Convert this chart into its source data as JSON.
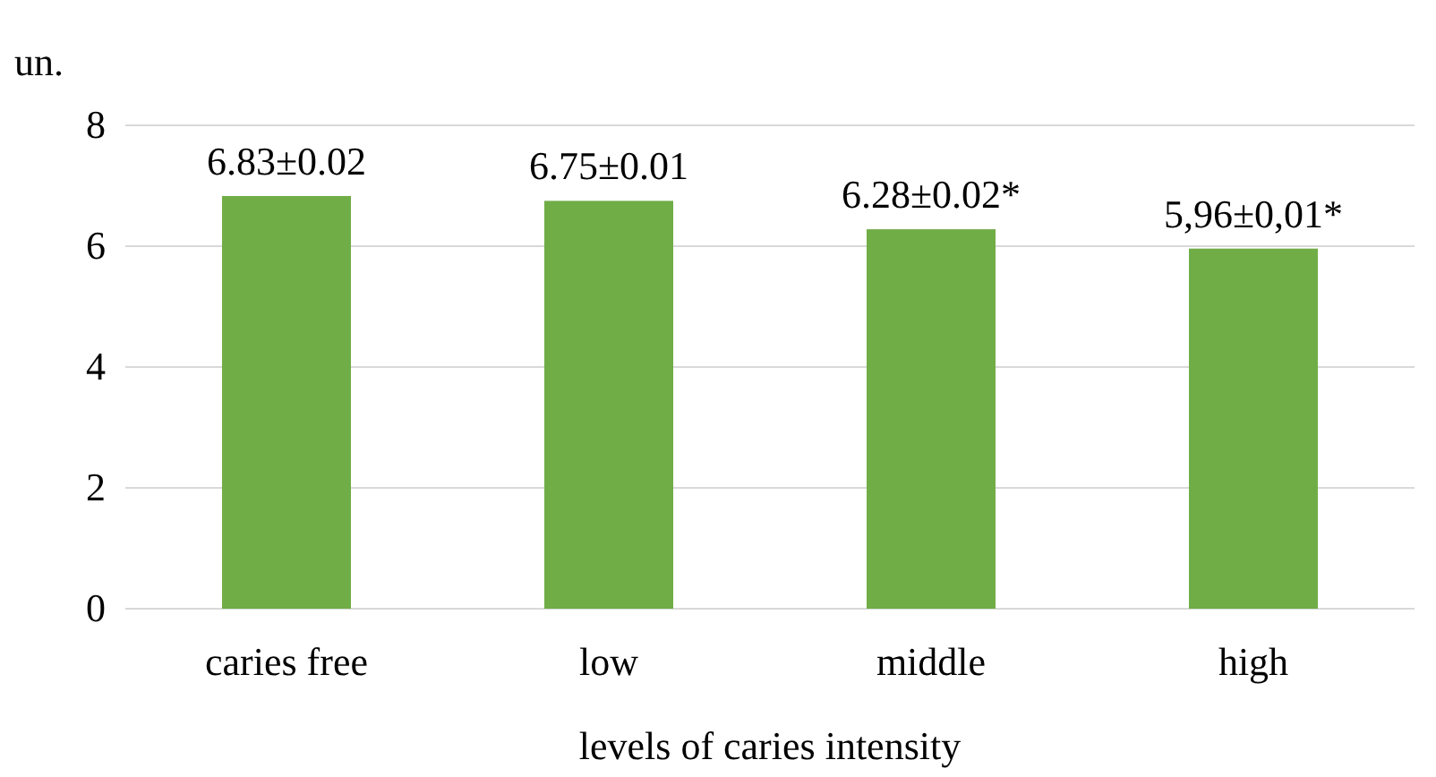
{
  "chart_data": {
    "type": "bar",
    "xlabel": "levels of caries intensity",
    "ylabel": "un.",
    "categories": [
      "caries free",
      "low",
      "middle",
      "high"
    ],
    "values": [
      6.83,
      6.75,
      6.28,
      5.96
    ],
    "value_labels": [
      "6.83±0.02",
      "6.75±0.01",
      "6.28±0.02*",
      "5,96±0,01*"
    ],
    "color": "#70ad47",
    "ylim": [
      0,
      8
    ],
    "yticks": [
      0,
      2,
      4,
      6,
      8
    ],
    "grid": "y"
  }
}
